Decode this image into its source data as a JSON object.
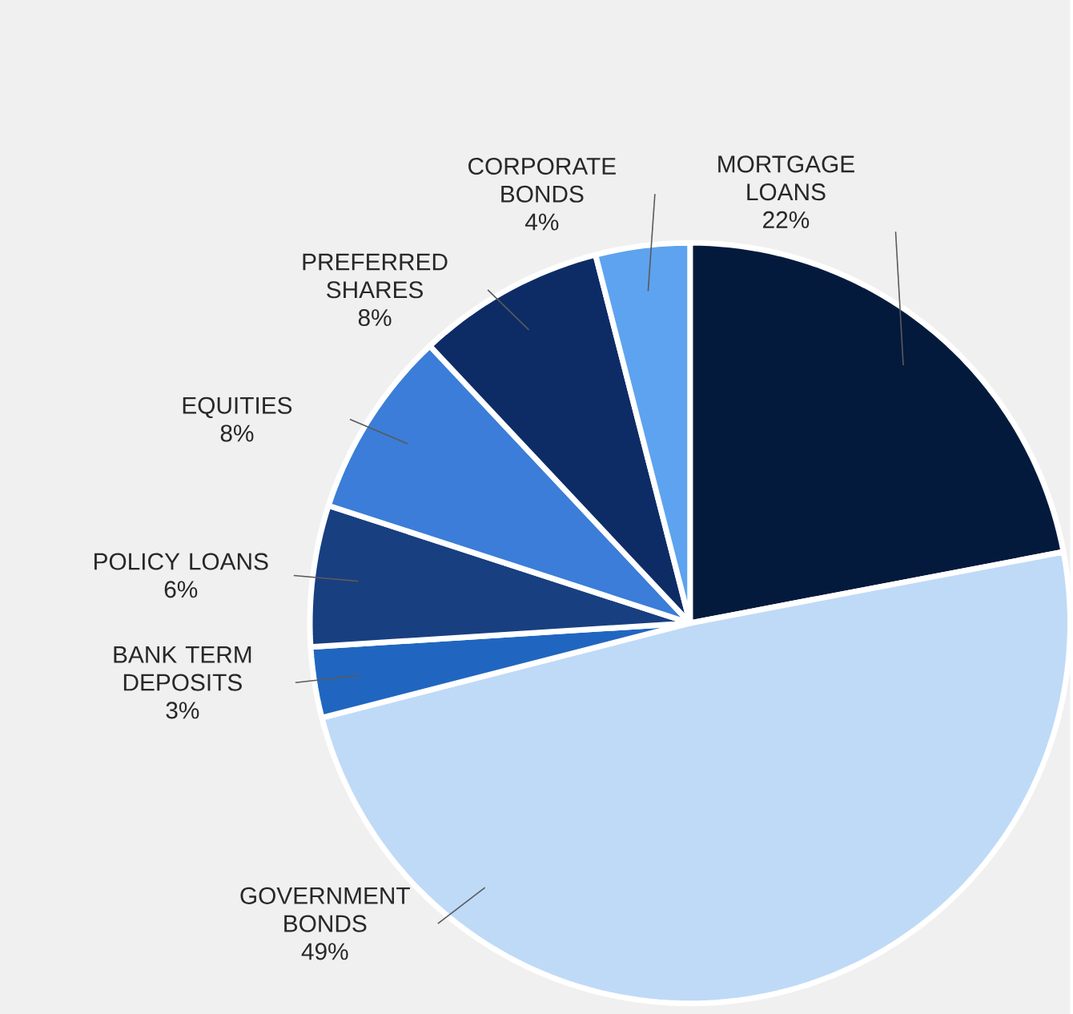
{
  "chart_data": {
    "type": "pie",
    "categories": [
      "MORTGAGE LOANS",
      "GOVERNMENT BONDS",
      "BANK TERM DEPOSITS",
      "POLICY LOANS",
      "EQUITIES",
      "PREFERRED SHARES",
      "CORPORATE BONDS"
    ],
    "values": [
      22,
      49,
      3,
      6,
      8,
      8,
      4
    ],
    "colors": [
      "#031a3d",
      "#bfdaf7",
      "#2066c0",
      "#183f80",
      "#3b7dd8",
      "#0d2c66",
      "#5ea3ef"
    ],
    "value_labels": [
      "22%",
      "49%",
      "3%",
      "6%",
      "8%",
      "8%",
      "4%"
    ]
  }
}
